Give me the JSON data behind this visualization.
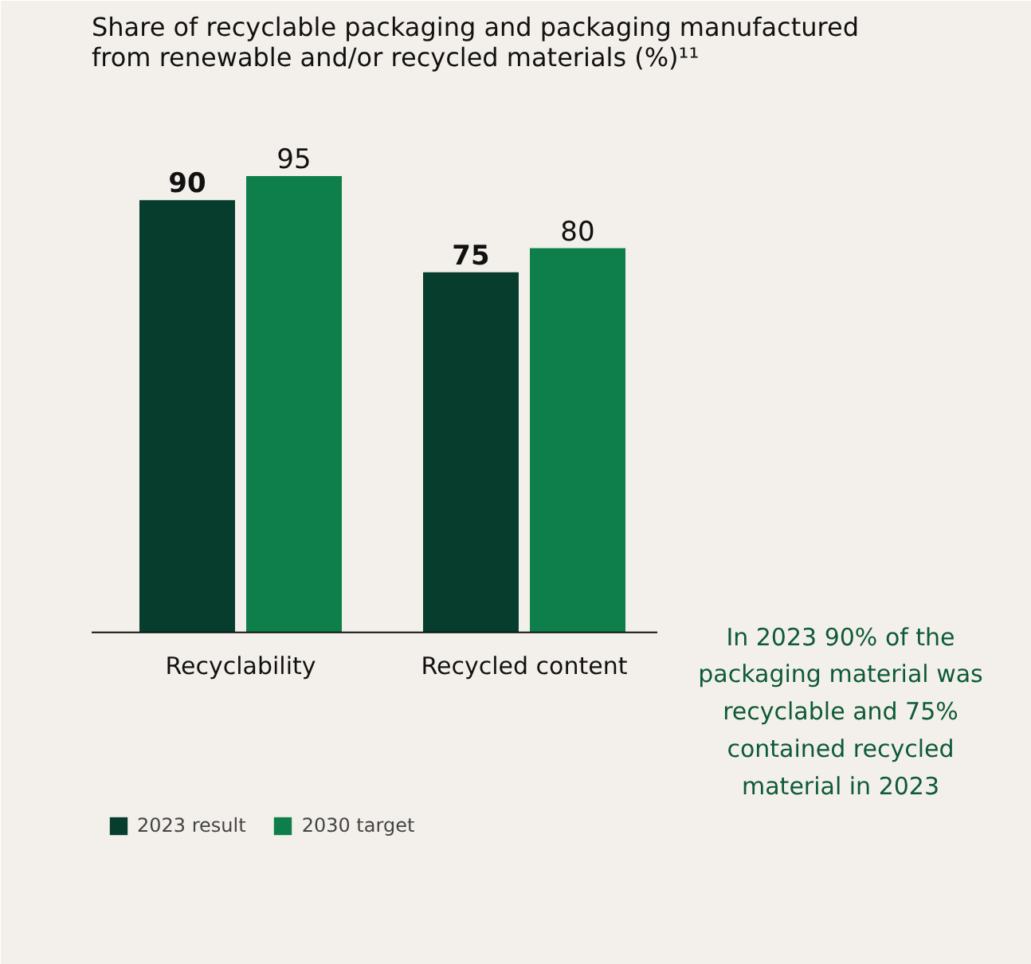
{
  "chart_data": {
    "type": "bar",
    "title": "Share of recyclable packaging and packaging manufactured\nfrom renewable and/or recycled materials (%)¹¹",
    "categories": [
      "Recyclability",
      "Recycled content"
    ],
    "series": [
      {
        "name": "2023 result",
        "color": "#063d2c",
        "values": [
          90,
          75
        ]
      },
      {
        "name": "2030 target",
        "color": "#0e7f4a",
        "values": [
          95,
          80
        ]
      }
    ],
    "data_labels": true,
    "grid": false,
    "legend": "bottom left",
    "annotations": [
      "In 2023 90% of the packaging material was recyclable and 75% contained recycled material in 2023"
    ]
  }
}
